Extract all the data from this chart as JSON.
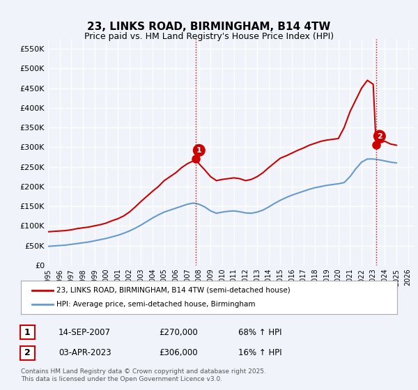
{
  "title": "23, LINKS ROAD, BIRMINGHAM, B14 4TW",
  "subtitle": "Price paid vs. HM Land Registry's House Price Index (HPI)",
  "legend_line1": "23, LINKS ROAD, BIRMINGHAM, B14 4TW (semi-detached house)",
  "legend_line2": "HPI: Average price, semi-detached house, Birmingham",
  "footer": "Contains HM Land Registry data © Crown copyright and database right 2025.\nThis data is licensed under the Open Government Licence v3.0.",
  "transactions": [
    {
      "num": 1,
      "date": "14-SEP-2007",
      "price": "£270,000",
      "hpi": "68% ↑ HPI"
    },
    {
      "num": 2,
      "date": "03-APR-2023",
      "price": "£306,000",
      "hpi": "16% ↑ HPI"
    }
  ],
  "ylim": [
    0,
    575000
  ],
  "yticks": [
    0,
    50000,
    100000,
    150000,
    200000,
    250000,
    300000,
    350000,
    400000,
    450000,
    500000,
    550000
  ],
  "ytick_labels": [
    "£0",
    "£50K",
    "£100K",
    "£150K",
    "£200K",
    "£250K",
    "£300K",
    "£350K",
    "£400K",
    "£450K",
    "£500K",
    "£550K"
  ],
  "xlim_start": 1995.0,
  "xlim_end": 2026.5,
  "xtick_years": [
    1995,
    1996,
    1997,
    1998,
    1999,
    2000,
    2001,
    2002,
    2003,
    2004,
    2005,
    2006,
    2007,
    2008,
    2009,
    2010,
    2011,
    2012,
    2013,
    2014,
    2015,
    2016,
    2017,
    2018,
    2019,
    2020,
    2021,
    2022,
    2023,
    2024,
    2025,
    2026
  ],
  "bg_color": "#f0f4fa",
  "plot_bg": "#f0f4fa",
  "grid_color": "#ffffff",
  "red_color": "#cc0000",
  "blue_color": "#6699cc",
  "annotation_vline_color": "#cc0000",
  "point1_x": 2007.71,
  "point1_y": 270000,
  "point2_x": 2023.25,
  "point2_y": 306000,
  "red_line_data": {
    "x": [
      1995.0,
      1995.5,
      1996.0,
      1996.5,
      1997.0,
      1997.5,
      1998.0,
      1998.5,
      1999.0,
      1999.5,
      2000.0,
      2000.5,
      2001.0,
      2001.5,
      2002.0,
      2002.5,
      2003.0,
      2003.5,
      2004.0,
      2004.5,
      2005.0,
      2005.5,
      2006.0,
      2006.5,
      2007.0,
      2007.5,
      2007.71,
      2008.0,
      2008.5,
      2009.0,
      2009.5,
      2010.0,
      2010.5,
      2011.0,
      2011.5,
      2012.0,
      2012.5,
      2013.0,
      2013.5,
      2014.0,
      2014.5,
      2015.0,
      2015.5,
      2016.0,
      2016.5,
      2017.0,
      2017.5,
      2018.0,
      2018.5,
      2019.0,
      2019.5,
      2020.0,
      2020.5,
      2021.0,
      2021.5,
      2022.0,
      2022.5,
      2023.0,
      2023.25,
      2023.5,
      2024.0,
      2024.5,
      2025.0
    ],
    "y": [
      85000,
      86000,
      87000,
      88000,
      90000,
      93000,
      95000,
      97000,
      100000,
      103000,
      107000,
      113000,
      118000,
      125000,
      135000,
      148000,
      162000,
      175000,
      188000,
      200000,
      215000,
      225000,
      235000,
      248000,
      258000,
      265000,
      270000,
      258000,
      242000,
      225000,
      215000,
      218000,
      220000,
      222000,
      220000,
      215000,
      218000,
      225000,
      235000,
      248000,
      260000,
      272000,
      278000,
      285000,
      292000,
      298000,
      305000,
      310000,
      315000,
      318000,
      320000,
      322000,
      350000,
      390000,
      420000,
      450000,
      470000,
      460000,
      306000,
      310000,
      315000,
      308000,
      305000
    ]
  },
  "blue_line_data": {
    "x": [
      1995.0,
      1995.5,
      1996.0,
      1996.5,
      1997.0,
      1997.5,
      1998.0,
      1998.5,
      1999.0,
      1999.5,
      2000.0,
      2000.5,
      2001.0,
      2001.5,
      2002.0,
      2002.5,
      2003.0,
      2003.5,
      2004.0,
      2004.5,
      2005.0,
      2005.5,
      2006.0,
      2006.5,
      2007.0,
      2007.5,
      2008.0,
      2008.5,
      2009.0,
      2009.5,
      2010.0,
      2010.5,
      2011.0,
      2011.5,
      2012.0,
      2012.5,
      2013.0,
      2013.5,
      2014.0,
      2014.5,
      2015.0,
      2015.5,
      2016.0,
      2016.5,
      2017.0,
      2017.5,
      2018.0,
      2018.5,
      2019.0,
      2019.5,
      2020.0,
      2020.5,
      2021.0,
      2021.5,
      2022.0,
      2022.5,
      2023.0,
      2023.5,
      2024.0,
      2024.5,
      2025.0
    ],
    "y": [
      48000,
      49000,
      50000,
      51000,
      53000,
      55000,
      57000,
      59000,
      62000,
      65000,
      68000,
      72000,
      76000,
      81000,
      87000,
      94000,
      102000,
      111000,
      120000,
      128000,
      135000,
      140000,
      145000,
      150000,
      155000,
      158000,
      155000,
      148000,
      138000,
      132000,
      135000,
      137000,
      138000,
      136000,
      133000,
      132000,
      135000,
      140000,
      148000,
      157000,
      165000,
      172000,
      178000,
      183000,
      188000,
      193000,
      197000,
      200000,
      203000,
      205000,
      207000,
      210000,
      225000,
      245000,
      262000,
      270000,
      270000,
      268000,
      265000,
      262000,
      260000
    ]
  }
}
